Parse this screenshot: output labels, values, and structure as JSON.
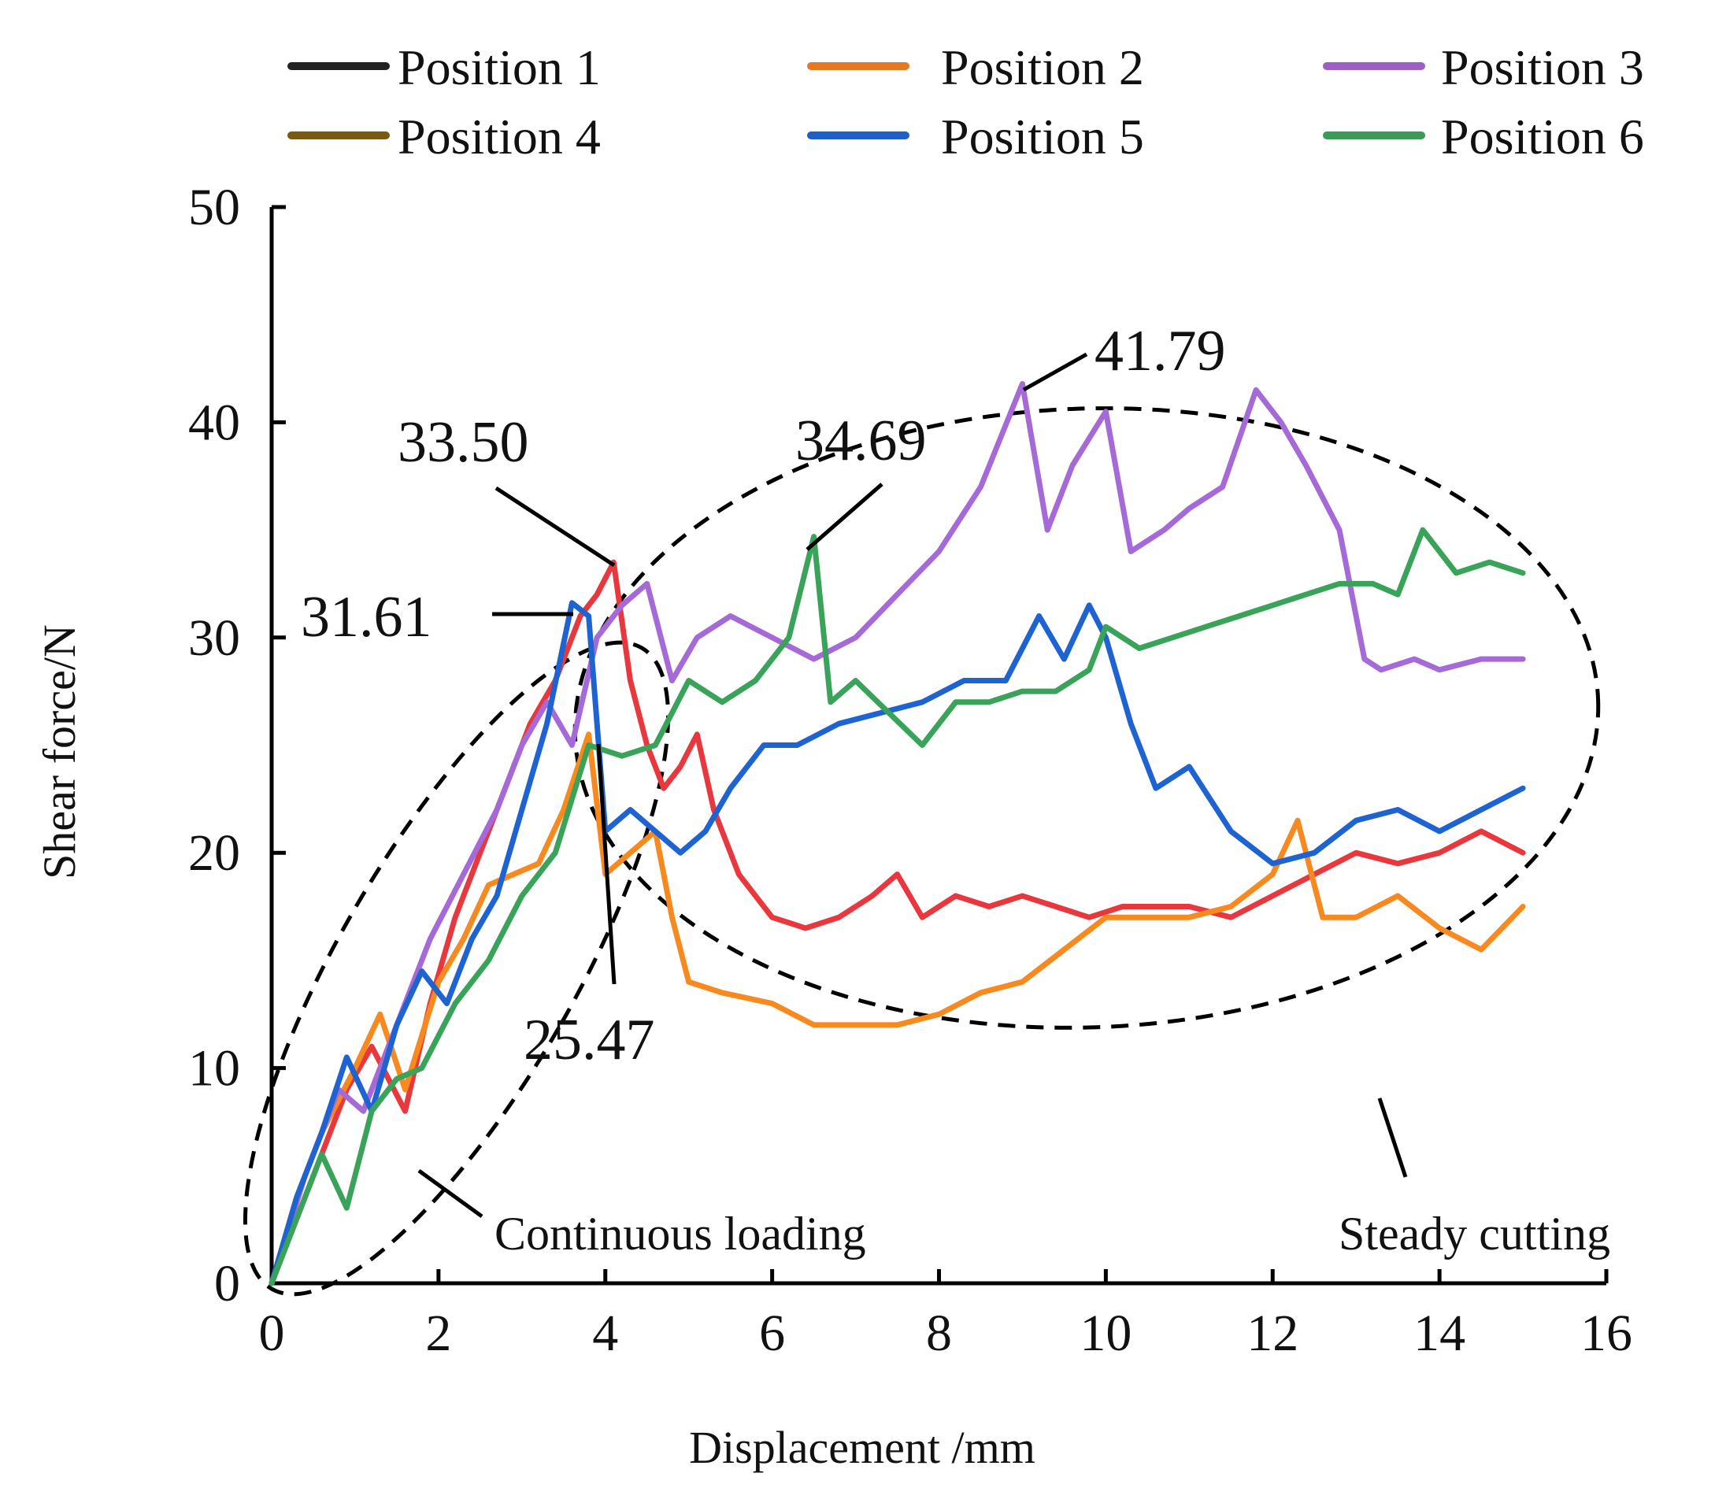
{
  "chart_data": {
    "type": "line",
    "xlabel": "Displacement /mm",
    "ylabel": "Shear force/N",
    "xlim": [
      0,
      16
    ],
    "ylim": [
      0,
      50
    ],
    "xticks": [
      0,
      2,
      4,
      6,
      8,
      10,
      12,
      14,
      16
    ],
    "yticks": [
      0,
      10,
      20,
      30,
      40,
      50
    ],
    "legend_position": "top",
    "legend": [
      {
        "name": "Position 1",
        "color": "#222222"
      },
      {
        "name": "Position 2",
        "color": "#e87722"
      },
      {
        "name": "Position 3",
        "color": "#9b5fc6"
      },
      {
        "name": "Position 4",
        "color": "#7a5a10"
      },
      {
        "name": "Position 5",
        "color": "#1f5fc8"
      },
      {
        "name": "Position 6",
        "color": "#3a9a56"
      }
    ],
    "series": [
      {
        "name": "red curve",
        "color": "#e8383d",
        "x": [
          0,
          0.3,
          0.6,
          0.9,
          1.2,
          1.6,
          1.9,
          2.2,
          2.5,
          2.8,
          3.1,
          3.4,
          3.7,
          3.9,
          4.1,
          4.3,
          4.5,
          4.7,
          4.9,
          5.1,
          5.3,
          5.6,
          6.0,
          6.4,
          6.8,
          7.2,
          7.5,
          7.8,
          8.2,
          8.6,
          9.0,
          9.4,
          9.8,
          10.2,
          10.6,
          11.0,
          11.5,
          12.0,
          12.5,
          13.0,
          13.5,
          14.0,
          14.5,
          15.0
        ],
        "y": [
          0,
          3,
          6,
          9,
          11,
          8,
          13,
          17,
          20,
          23,
          26,
          28,
          31,
          32,
          33.5,
          28,
          25,
          23,
          24,
          25.5,
          22,
          19,
          17,
          16.5,
          17,
          18,
          19,
          17,
          18,
          17.5,
          18,
          17.5,
          17,
          17.5,
          17.5,
          17.5,
          17,
          18,
          19,
          20,
          19.5,
          20,
          21,
          20
        ]
      },
      {
        "name": "orange curve",
        "color": "#f7891f",
        "x": [
          0,
          0.3,
          0.6,
          1.0,
          1.3,
          1.6,
          2.0,
          2.3,
          2.6,
          2.9,
          3.2,
          3.5,
          3.8,
          4.0,
          4.3,
          4.6,
          4.8,
          5.0,
          5.4,
          6.0,
          6.5,
          7.0,
          7.5,
          8.0,
          8.5,
          9.0,
          9.5,
          10.0,
          10.5,
          11.0,
          11.5,
          12.0,
          12.3,
          12.6,
          13.0,
          13.5,
          14.0,
          14.5,
          15.0
        ],
        "y": [
          0,
          4,
          7,
          10,
          12.5,
          9,
          14,
          16,
          18.5,
          19,
          19.5,
          22,
          25.5,
          19,
          20,
          21,
          17,
          14,
          13.5,
          13,
          12,
          12,
          12,
          12.5,
          13.5,
          14,
          15.5,
          17,
          17,
          17,
          17.5,
          19,
          21.5,
          17,
          17,
          18,
          16.5,
          15.5,
          17.5
        ]
      },
      {
        "name": "purple curve",
        "color": "#a56ad8",
        "x": [
          0,
          0.4,
          0.8,
          1.1,
          1.5,
          1.9,
          2.3,
          2.7,
          3.0,
          3.3,
          3.6,
          3.9,
          4.2,
          4.5,
          4.8,
          5.1,
          5.5,
          6.0,
          6.5,
          7.0,
          7.5,
          8.0,
          8.5,
          9.0,
          9.3,
          9.6,
          10.0,
          10.3,
          10.7,
          11.0,
          11.4,
          11.8,
          12.1,
          12.4,
          12.8,
          13.1,
          13.3,
          13.7,
          14.0,
          14.5,
          15.0
        ],
        "y": [
          0,
          5,
          9,
          8,
          12,
          16,
          19,
          22,
          25,
          27,
          25,
          30,
          31.5,
          32.5,
          28,
          30,
          31,
          30,
          29,
          30,
          32,
          34,
          37,
          41.79,
          35,
          38,
          40.5,
          34,
          35,
          36,
          37,
          41.5,
          40,
          38,
          35,
          29,
          28.5,
          29,
          28.5,
          29,
          29
        ]
      },
      {
        "name": "blue curve",
        "color": "#1e63d2",
        "x": [
          0,
          0.3,
          0.6,
          0.9,
          1.2,
          1.5,
          1.8,
          2.1,
          2.4,
          2.7,
          3.0,
          3.3,
          3.6,
          3.8,
          4.0,
          4.3,
          4.6,
          4.9,
          5.2,
          5.5,
          5.9,
          6.3,
          6.8,
          7.3,
          7.8,
          8.3,
          8.8,
          9.2,
          9.5,
          9.8,
          10.0,
          10.3,
          10.6,
          11.0,
          11.5,
          12.0,
          12.5,
          13.0,
          13.5,
          14.0,
          14.5,
          15.0
        ],
        "y": [
          0,
          4,
          7,
          10.5,
          8,
          12,
          14.5,
          13,
          16,
          18,
          22,
          26,
          31.61,
          31,
          21,
          22,
          21,
          20,
          21,
          23,
          25,
          25,
          26,
          26.5,
          27,
          28,
          28,
          31,
          29,
          31.5,
          30,
          26,
          23,
          24,
          21,
          19.5,
          20,
          21.5,
          22,
          21,
          22,
          23
        ]
      },
      {
        "name": "green curve",
        "color": "#3aa35a",
        "x": [
          0,
          0.3,
          0.6,
          0.9,
          1.2,
          1.5,
          1.8,
          2.2,
          2.6,
          3.0,
          3.4,
          3.8,
          4.2,
          4.6,
          5.0,
          5.4,
          5.8,
          6.2,
          6.5,
          6.7,
          7.0,
          7.4,
          7.8,
          8.2,
          8.6,
          9.0,
          9.4,
          9.8,
          10.0,
          10.4,
          10.8,
          11.2,
          11.6,
          12.0,
          12.4,
          12.8,
          13.2,
          13.5,
          13.8,
          14.2,
          14.6,
          15.0
        ],
        "y": [
          0,
          3,
          6,
          3.5,
          8,
          9.5,
          10,
          13,
          15,
          18,
          20,
          25,
          24.5,
          25,
          28,
          27,
          28,
          30,
          34.69,
          27,
          28,
          26.5,
          25,
          27,
          27,
          27.5,
          27.5,
          28.5,
          30.5,
          29.5,
          30,
          30.5,
          31,
          31.5,
          32,
          32.5,
          32.5,
          32,
          35,
          33,
          33.5,
          33
        ]
      }
    ],
    "annotations": [
      {
        "label": "33.50",
        "color": "#e8383d",
        "x": 4.1,
        "y": 33.5
      },
      {
        "label": "31.61",
        "color": "#1e63d2",
        "x": 3.6,
        "y": 31.61
      },
      {
        "label": "34.69",
        "color": "#3aa35a",
        "x": 6.5,
        "y": 34.69
      },
      {
        "label": "41.79",
        "color": "#a56ad8",
        "x": 9.0,
        "y": 41.79
      },
      {
        "label": "25.47",
        "color": "#f7891f",
        "x": 3.8,
        "y": 25.47
      }
    ],
    "regions": [
      {
        "label": "Continuous loading"
      },
      {
        "label": "Steady cutting"
      }
    ]
  }
}
